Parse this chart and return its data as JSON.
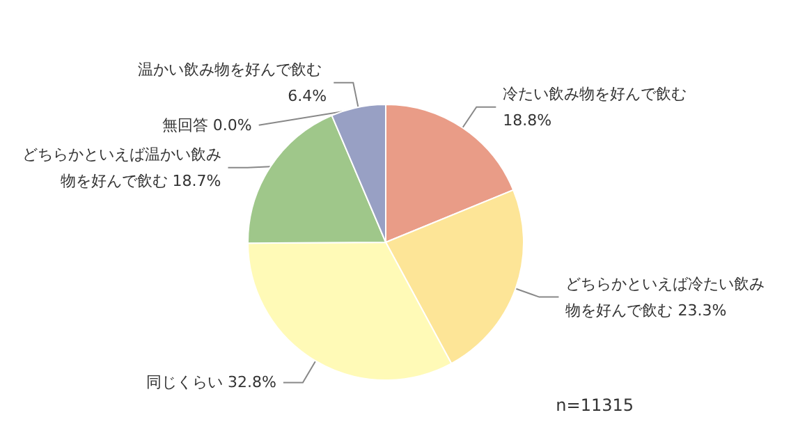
{
  "chart_data": {
    "type": "pie",
    "categories": [
      "冷たい飲み物を好んで飲む",
      "どちらかといえば冷たい飲み物を好んで飲む",
      "同じくらい",
      "どちらかといえば温かい飲み物を好んで飲む",
      "温かい飲み物を好んで飲む",
      "無回答"
    ],
    "values": [
      18.8,
      23.3,
      32.8,
      18.7,
      6.4,
      0.0
    ],
    "value_labels": [
      "18.8%",
      "23.3%",
      "32.8%",
      "18.7%",
      "6.4%",
      "0.0%"
    ],
    "colors": [
      "#e99c87",
      "#fde597",
      "#fffab7",
      "#9fc78a",
      "#98a0c4",
      "#c0c0c0"
    ],
    "annotations": [
      "n=11315"
    ],
    "legend": false
  }
}
